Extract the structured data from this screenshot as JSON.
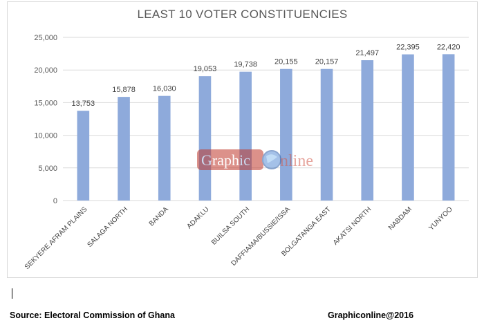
{
  "chart_data": {
    "type": "bar",
    "title": "LEAST 10 VOTER CONSTITUENCIES",
    "categories": [
      "SEKYERE AFRAM PLAINS",
      "SALAGA NORTH",
      "BANDA",
      "ADAKLU",
      "BUILSA SOUTH",
      "DAFFIAMA/BUSSIE/ISSA",
      "BOLGATANGA EAST",
      "AKATSI NORTH",
      "NABDAM",
      "YUNYOO"
    ],
    "values": [
      13753,
      15878,
      16030,
      19053,
      19738,
      20155,
      20157,
      21497,
      22395,
      22420
    ],
    "data_labels": [
      "13,753",
      "15,878",
      "16,030",
      "19,053",
      "19,738",
      "20,155",
      "20,157",
      "21,497",
      "22,395",
      "22,420"
    ],
    "ylim": [
      0,
      25000
    ],
    "yticks": [
      0,
      5000,
      10000,
      15000,
      20000,
      25000
    ],
    "ytick_labels": [
      "0",
      "5,000",
      "10,000",
      "15,000",
      "20,000",
      "25,000"
    ],
    "xlabel": "",
    "ylabel": "",
    "grid": true,
    "legend": "none",
    "bar_color": "#8eaadb"
  },
  "watermark": {
    "left": "Graphic",
    "right": "nline"
  },
  "footer": {
    "source": "Source: Electoral Commission of Ghana",
    "credit": "Graphiconline@2016"
  }
}
